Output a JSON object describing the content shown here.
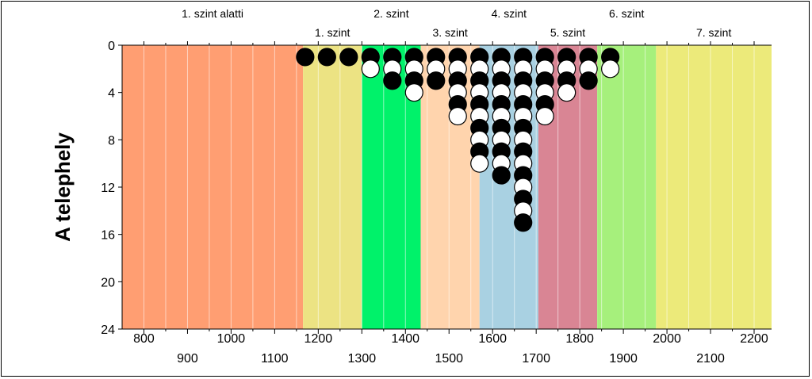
{
  "chart_data": {
    "type": "scatter",
    "ylabel": "A telephely",
    "ylim": [
      24,
      0
    ],
    "xlim": [
      750,
      2240
    ],
    "y_ticks": [
      "0",
      "4",
      "8",
      "12",
      "16",
      "20",
      "24"
    ],
    "x_ticks_low": [
      "800",
      "1000",
      "1200",
      "1400",
      "1600",
      "1800",
      "2000",
      "2200"
    ],
    "x_ticks_high": [
      "900",
      "1100",
      "1300",
      "1500",
      "1700",
      "1900",
      "2100"
    ],
    "levels": [
      {
        "name": "1. szint alatti",
        "x_start": 750,
        "x_end": 1165,
        "color": "#FF9E72",
        "label_row": "top"
      },
      {
        "name": "1. szint",
        "x_start": 1165,
        "x_end": 1300,
        "color": "#ECE383",
        "label_row": "bottom"
      },
      {
        "name": "2. szint",
        "x_start": 1300,
        "x_end": 1435,
        "color": "#00F26A",
        "label_row": "top"
      },
      {
        "name": "3. szint",
        "x_start": 1435,
        "x_end": 1570,
        "color": "#FFD4AD",
        "label_row": "bottom"
      },
      {
        "name": "4. szint",
        "x_start": 1570,
        "x_end": 1705,
        "color": "#A9D1E2",
        "label_row": "top"
      },
      {
        "name": "5. szint",
        "x_start": 1705,
        "x_end": 1840,
        "color": "#D98594",
        "label_row": "bottom"
      },
      {
        "name": "6. szint",
        "x_start": 1840,
        "x_end": 1975,
        "color": "#A6F07C",
        "label_row": "top"
      },
      {
        "name": "7. szint",
        "x_start": 1975,
        "x_end": 2240,
        "color": "#ECEA7A",
        "label_row": "bottom"
      }
    ],
    "columns": [
      {
        "x": 1170,
        "markers": "B"
      },
      {
        "x": 1220,
        "markers": "B"
      },
      {
        "x": 1270,
        "markers": "B"
      },
      {
        "x": 1320,
        "markers": "BW"
      },
      {
        "x": 1370,
        "markers": "BWB"
      },
      {
        "x": 1420,
        "markers": "BWBW"
      },
      {
        "x": 1470,
        "markers": "BWB"
      },
      {
        "x": 1520,
        "markers": "BWBWBW"
      },
      {
        "x": 1570,
        "markers": "BWBWBWBWBW"
      },
      {
        "x": 1620,
        "markers": "BWBWBWBWBWB"
      },
      {
        "x": 1670,
        "markers": "BWBWBWBWBWBWBWB"
      },
      {
        "x": 1720,
        "markers": "BWBWBW"
      },
      {
        "x": 1770,
        "markers": "BWBW"
      },
      {
        "x": 1820,
        "markers": "BWB"
      },
      {
        "x": 1870,
        "markers": "BW"
      }
    ],
    "marker_colors": {
      "B": "#000000",
      "W": "#ffffff"
    }
  }
}
